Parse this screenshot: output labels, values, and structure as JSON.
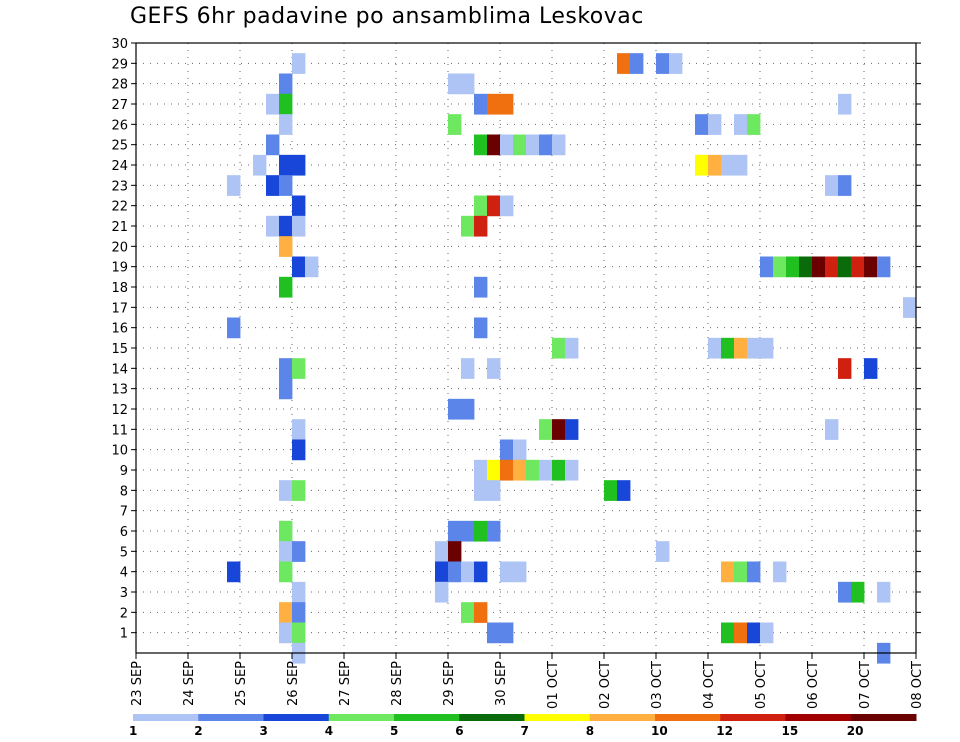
{
  "chart_data": {
    "type": "heatmap",
    "title": "GEFS 6hr padavine po ansamblima Leskovac",
    "xlabel": "",
    "ylabel": "",
    "x_ticks": [
      "23 SEP",
      "24 SEP",
      "25 SEP",
      "26 SEP",
      "27 SEP",
      "28 SEP",
      "29 SEP",
      "30 SEP",
      "01 OCT",
      "02 OCT",
      "03 OCT",
      "04 OCT",
      "05 OCT",
      "06 OCT",
      "07 OCT",
      "08 OCT"
    ],
    "xlim_days": [
      0,
      15
    ],
    "y_ticks": [
      1,
      2,
      3,
      4,
      5,
      6,
      7,
      8,
      9,
      10,
      11,
      12,
      13,
      14,
      15,
      16,
      17,
      18,
      19,
      20,
      21,
      22,
      23,
      24,
      25,
      26,
      27,
      28,
      29,
      30
    ],
    "ylim": [
      0,
      30
    ],
    "grid": true,
    "cell_hours": 6,
    "colorbar": {
      "labels": [
        "1",
        "2",
        "3",
        "4",
        "5",
        "6",
        "7",
        "8",
        "10",
        "12",
        "15",
        "20"
      ],
      "colors": [
        "#aec4f5",
        "#5b85e8",
        "#1846d8",
        "#6ee860",
        "#20c020",
        "#0a6b0a",
        "#ffff00",
        "#ffb040",
        "#f07010",
        "#d02010",
        "#a00000",
        "#6a0000"
      ]
    },
    "cells": [
      {
        "member": 29,
        "cells": [
          [
            3.0,
            1
          ],
          [
            9.25,
            10
          ],
          [
            9.5,
            2
          ],
          [
            10.0,
            2
          ],
          [
            10.25,
            1
          ]
        ]
      },
      {
        "member": 28,
        "cells": [
          [
            2.75,
            2
          ],
          [
            6.0,
            1
          ],
          [
            6.25,
            1
          ]
        ]
      },
      {
        "member": 27,
        "cells": [
          [
            2.5,
            1
          ],
          [
            2.75,
            5
          ],
          [
            6.5,
            2
          ],
          [
            6.75,
            10
          ],
          [
            7.0,
            10
          ],
          [
            13.5,
            1
          ]
        ]
      },
      {
        "member": 26,
        "cells": [
          [
            2.75,
            1
          ],
          [
            6.0,
            4
          ],
          [
            10.75,
            2
          ],
          [
            11.0,
            1
          ],
          [
            11.5,
            1
          ],
          [
            11.75,
            4
          ]
        ]
      },
      {
        "member": 25,
        "cells": [
          [
            2.5,
            2
          ],
          [
            6.5,
            5
          ],
          [
            6.75,
            20
          ],
          [
            7.0,
            1
          ],
          [
            7.25,
            4
          ],
          [
            7.5,
            1
          ],
          [
            7.75,
            2
          ],
          [
            8.0,
            1
          ]
        ]
      },
      {
        "member": 24,
        "cells": [
          [
            2.25,
            1
          ],
          [
            2.75,
            3
          ],
          [
            3.0,
            3
          ],
          [
            10.75,
            7
          ],
          [
            11.0,
            8
          ],
          [
            11.25,
            1
          ],
          [
            11.5,
            1
          ]
        ]
      },
      {
        "member": 23,
        "cells": [
          [
            1.75,
            1
          ],
          [
            2.5,
            3
          ],
          [
            2.75,
            2
          ],
          [
            13.25,
            1
          ],
          [
            13.5,
            2
          ]
        ]
      },
      {
        "member": 22,
        "cells": [
          [
            3.0,
            3
          ],
          [
            6.5,
            4
          ],
          [
            6.75,
            12
          ],
          [
            7.0,
            1
          ]
        ]
      },
      {
        "member": 21,
        "cells": [
          [
            2.5,
            1
          ],
          [
            2.75,
            3
          ],
          [
            3.0,
            1
          ],
          [
            6.25,
            4
          ],
          [
            6.5,
            12
          ]
        ]
      },
      {
        "member": 20,
        "cells": [
          [
            2.75,
            8
          ]
        ]
      },
      {
        "member": 19,
        "cells": [
          [
            3.0,
            3
          ],
          [
            3.25,
            1
          ],
          [
            12.0,
            2
          ],
          [
            12.25,
            4
          ],
          [
            12.5,
            5
          ],
          [
            12.75,
            6
          ],
          [
            13.0,
            30
          ],
          [
            13.25,
            12
          ],
          [
            13.5,
            6
          ],
          [
            13.75,
            12
          ],
          [
            14.0,
            20
          ],
          [
            14.25,
            2
          ]
        ]
      },
      {
        "member": 18,
        "cells": [
          [
            2.75,
            5
          ],
          [
            6.5,
            2
          ]
        ]
      },
      {
        "member": 17,
        "cells": [
          [
            14.75,
            1
          ]
        ]
      },
      {
        "member": 16,
        "cells": [
          [
            1.75,
            2
          ],
          [
            6.5,
            2
          ]
        ]
      },
      {
        "member": 15,
        "cells": [
          [
            8.0,
            4
          ],
          [
            8.25,
            1
          ],
          [
            11.0,
            1
          ],
          [
            11.25,
            5
          ],
          [
            11.5,
            8
          ],
          [
            11.75,
            1
          ],
          [
            12.0,
            1
          ]
        ]
      },
      {
        "member": 14,
        "cells": [
          [
            2.75,
            2
          ],
          [
            3.0,
            4
          ],
          [
            6.25,
            1
          ],
          [
            6.75,
            1
          ],
          [
            13.5,
            12
          ],
          [
            14.0,
            3
          ]
        ]
      },
      {
        "member": 13,
        "cells": [
          [
            2.75,
            2
          ]
        ]
      },
      {
        "member": 12,
        "cells": [
          [
            6.0,
            2
          ],
          [
            6.25,
            2
          ]
        ]
      },
      {
        "member": 11,
        "cells": [
          [
            3.0,
            1
          ],
          [
            7.75,
            4
          ],
          [
            8.0,
            20
          ],
          [
            8.25,
            3
          ],
          [
            13.25,
            1
          ]
        ]
      },
      {
        "member": 10,
        "cells": [
          [
            3.0,
            3
          ],
          [
            7.0,
            2
          ],
          [
            7.25,
            1
          ]
        ]
      },
      {
        "member": 9,
        "cells": [
          [
            6.5,
            1
          ],
          [
            6.75,
            7
          ],
          [
            7.0,
            10
          ],
          [
            7.25,
            8
          ],
          [
            7.5,
            4
          ],
          [
            7.75,
            1
          ],
          [
            8.0,
            5
          ],
          [
            8.25,
            1
          ]
        ]
      },
      {
        "member": 8,
        "cells": [
          [
            2.75,
            1
          ],
          [
            3.0,
            4
          ],
          [
            6.5,
            1
          ],
          [
            6.75,
            1
          ],
          [
            9.0,
            5
          ],
          [
            9.25,
            3
          ]
        ]
      },
      {
        "member": 6,
        "cells": [
          [
            2.75,
            4
          ],
          [
            6.0,
            2
          ],
          [
            6.25,
            2
          ],
          [
            6.5,
            5
          ],
          [
            6.75,
            2
          ]
        ]
      },
      {
        "member": 5,
        "cells": [
          [
            2.75,
            1
          ],
          [
            3.0,
            2
          ],
          [
            5.75,
            1
          ],
          [
            6.0,
            20
          ],
          [
            10.0,
            1
          ]
        ]
      },
      {
        "member": 4,
        "cells": [
          [
            1.75,
            3
          ],
          [
            2.75,
            4
          ],
          [
            5.75,
            3
          ],
          [
            6.0,
            2
          ],
          [
            6.25,
            1
          ],
          [
            6.5,
            3
          ],
          [
            7.0,
            1
          ],
          [
            7.25,
            1
          ],
          [
            11.25,
            8
          ],
          [
            11.5,
            4
          ],
          [
            11.75,
            2
          ],
          [
            12.25,
            1
          ]
        ]
      },
      {
        "member": 3,
        "cells": [
          [
            3.0,
            1
          ],
          [
            5.75,
            1
          ],
          [
            13.5,
            2
          ],
          [
            13.75,
            5
          ],
          [
            14.25,
            1
          ]
        ]
      },
      {
        "member": 2,
        "cells": [
          [
            2.75,
            8
          ],
          [
            3.0,
            2
          ],
          [
            6.25,
            4
          ],
          [
            6.5,
            10
          ]
        ]
      },
      {
        "member": 1,
        "cells": [
          [
            2.75,
            1
          ],
          [
            3.0,
            4
          ],
          [
            6.75,
            2
          ],
          [
            7.0,
            2
          ],
          [
            11.25,
            5
          ],
          [
            11.5,
            10
          ],
          [
            11.75,
            3
          ],
          [
            12.0,
            1
          ]
        ]
      },
      {
        "member": 0,
        "cells": [
          [
            3.0,
            1
          ],
          [
            14.25,
            2
          ]
        ]
      }
    ]
  }
}
